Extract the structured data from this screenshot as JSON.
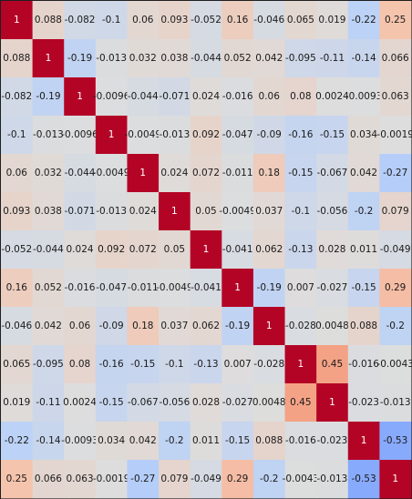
{
  "chart_data": {
    "type": "heatmap",
    "colormap": "coolwarm",
    "vmin": -1,
    "vmax": 1,
    "colors": {
      "background": "#1f1f1f",
      "cold_end": "#3b4cc0",
      "neutral": "#dddddd",
      "warm_end": "#b40426",
      "text_dark": "#1a1a1a",
      "text_light": "#ffffff"
    },
    "labels_visible": false,
    "matrix": [
      [
        1,
        0.088,
        -0.082,
        -0.1,
        0.06,
        0.093,
        -0.052,
        0.16,
        -0.046,
        0.065,
        0.019,
        -0.22,
        0.25
      ],
      [
        0.088,
        1,
        -0.19,
        -0.013,
        0.032,
        0.038,
        -0.044,
        0.052,
        0.042,
        -0.095,
        -0.11,
        -0.14,
        0.066
      ],
      [
        -0.082,
        -0.19,
        1,
        -0.0096,
        -0.044,
        -0.071,
        0.024,
        -0.016,
        0.06,
        0.08,
        0.0024,
        -0.0093,
        0.063
      ],
      [
        -0.1,
        -0.013,
        -0.0096,
        1,
        -0.0049,
        -0.013,
        0.092,
        -0.047,
        -0.09,
        -0.16,
        -0.15,
        0.034,
        -0.0019
      ],
      [
        0.06,
        0.032,
        -0.044,
        -0.0049,
        1,
        0.024,
        0.072,
        -0.011,
        0.18,
        -0.15,
        -0.067,
        0.042,
        -0.27
      ],
      [
        0.093,
        0.038,
        -0.071,
        -0.013,
        0.024,
        1,
        0.05,
        -0.0049,
        0.037,
        -0.1,
        -0.056,
        -0.2,
        0.079
      ],
      [
        -0.052,
        -0.044,
        0.024,
        0.092,
        0.072,
        0.05,
        1,
        -0.041,
        0.062,
        -0.13,
        0.028,
        0.011,
        -0.049
      ],
      [
        0.16,
        0.052,
        -0.016,
        -0.047,
        -0.011,
        -0.0049,
        -0.041,
        1,
        -0.19,
        0.007,
        -0.027,
        -0.15,
        0.29
      ],
      [
        -0.046,
        0.042,
        0.06,
        -0.09,
        0.18,
        0.037,
        0.062,
        -0.19,
        1,
        -0.028,
        0.0048,
        0.088,
        -0.2
      ],
      [
        0.065,
        -0.095,
        0.08,
        -0.16,
        -0.15,
        -0.1,
        -0.13,
        0.007,
        -0.028,
        1,
        0.45,
        -0.016,
        -0.0043
      ],
      [
        0.019,
        -0.11,
        0.0024,
        -0.15,
        -0.067,
        -0.056,
        0.028,
        -0.027,
        0.0048,
        0.45,
        1,
        -0.023,
        -0.013
      ],
      [
        -0.22,
        -0.14,
        -0.0093,
        0.034,
        0.042,
        -0.2,
        0.011,
        -0.15,
        0.088,
        -0.016,
        -0.023,
        1,
        -0.53
      ],
      [
        0.25,
        0.066,
        0.063,
        -0.0019,
        -0.27,
        0.079,
        -0.049,
        0.29,
        -0.2,
        -0.0043,
        -0.013,
        -0.53,
        1
      ]
    ]
  }
}
